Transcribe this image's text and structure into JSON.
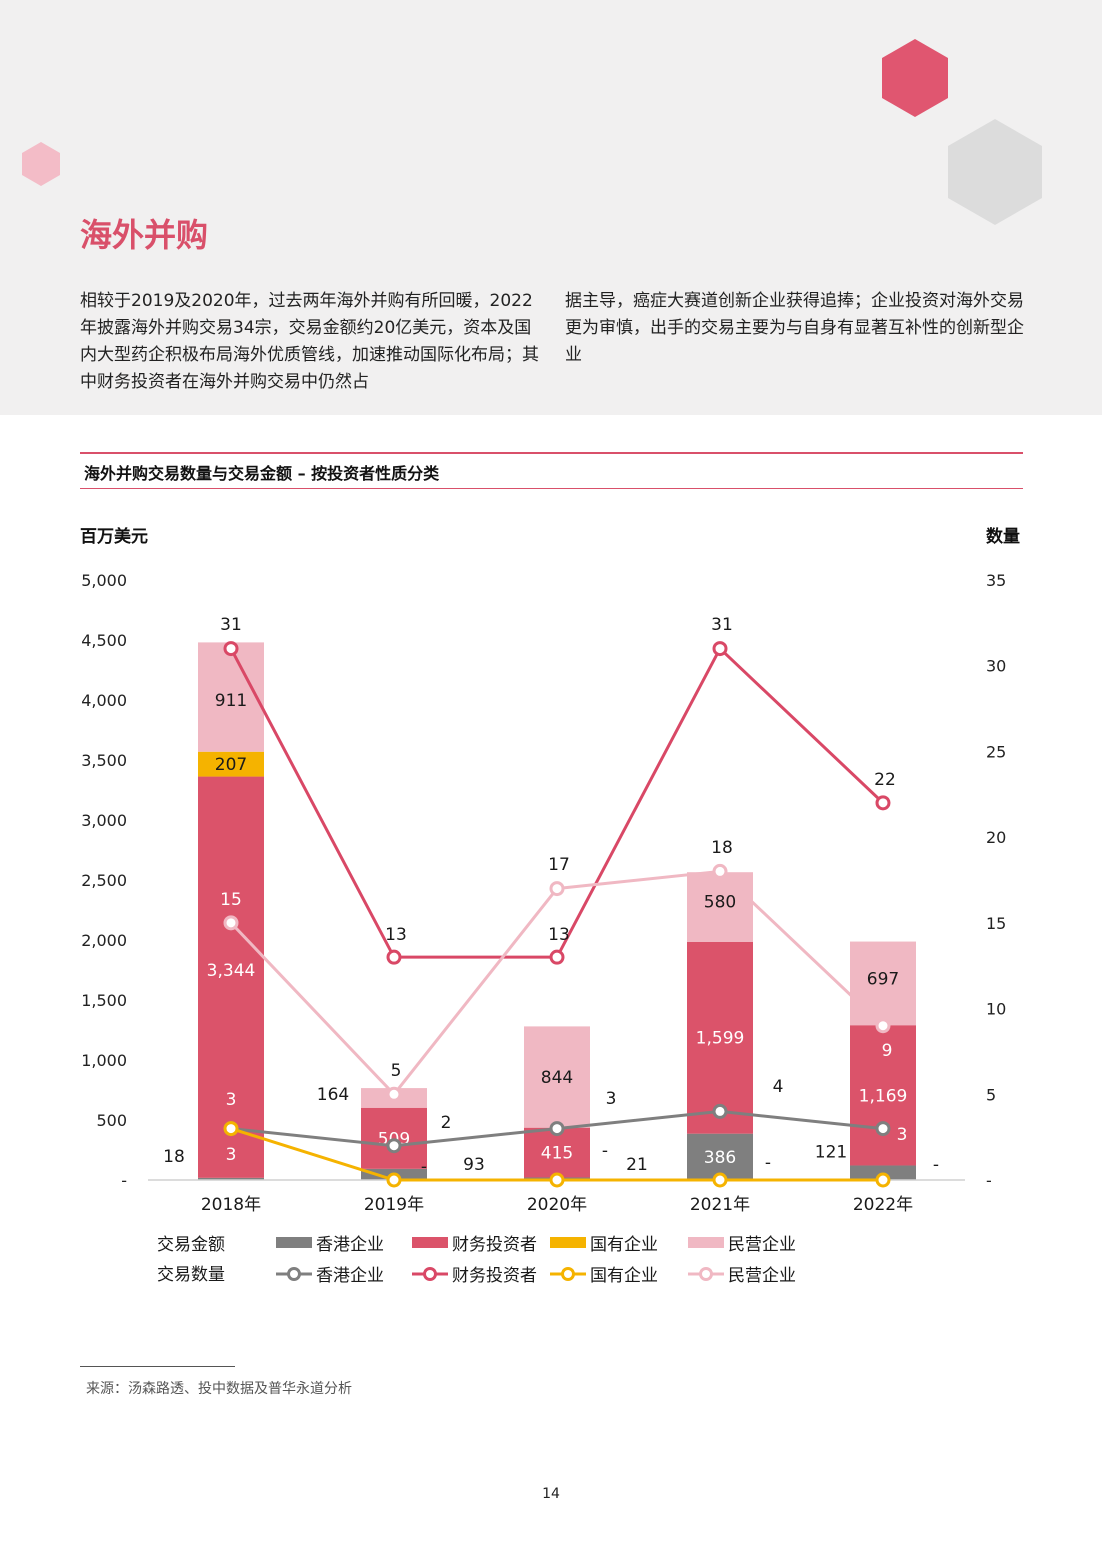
{
  "page": {
    "section_title": "海外并购",
    "intro_left": "相较于2019及2020年，过去两年海外并购有所回暖，2022年披露海外并购交易34宗，交易金额约20亿美元，资本及国内大型药企积极布局海外优质管线，加速推动国际化布局；其中财务投资者在海外并购交易中仍然占",
    "intro_right": "据主导，癌症大赛道创新企业获得追捧；企业投资对海外交易更为审慎，出手的交易主要为与自身有显著互补性的创新型企业",
    "chart_title": "海外并购交易数量与交易金额 – 按投资者性质分类",
    "source": "来源：汤森路透、投中数据及普华永道分析",
    "page_number": "14"
  },
  "colors": {
    "hk": "#7f7f7f",
    "financial": "#db536a",
    "state": "#f5b300",
    "private": "#f0b8c3",
    "title_accent": "#d9506a",
    "hex_red": "#e05670",
    "hex_pink": "#f3bcc7",
    "hex_grey": "#dcdcdc",
    "band": "#f1f0f0"
  },
  "chart_data": {
    "type": "bar",
    "categories": [
      "2018年",
      "2019年",
      "2020年",
      "2021年",
      "2022年"
    ],
    "left_axis": {
      "label": "百万美元",
      "ylim": [
        0,
        5000
      ],
      "ticks": [
        "-",
        "500",
        "1,000",
        "1,500",
        "2,000",
        "2,500",
        "3,000",
        "3,500",
        "4,000",
        "4,500",
        "5,000"
      ]
    },
    "right_axis": {
      "label": "数量",
      "ylim": [
        0,
        35
      ],
      "ticks": [
        "-",
        "5",
        "10",
        "15",
        "20",
        "25",
        "30",
        "35"
      ]
    },
    "amount_series": [
      {
        "key": "hk",
        "name": "香港企业",
        "values": [
          18,
          93,
          21,
          386,
          121
        ],
        "labels": [
          "18",
          "93",
          "21",
          "386",
          "121"
        ]
      },
      {
        "key": "financial",
        "name": "财务投资者",
        "values": [
          3344,
          509,
          415,
          1599,
          1169
        ],
        "labels": [
          "3,344",
          "509",
          "415",
          "1,599",
          "1,169"
        ]
      },
      {
        "key": "state",
        "name": "国有企业",
        "values": [
          207,
          0,
          0,
          0,
          0
        ],
        "labels": [
          "207",
          "-",
          "-",
          "-",
          "-"
        ]
      },
      {
        "key": "private",
        "name": "民营企业",
        "values": [
          911,
          164,
          844,
          580,
          697
        ],
        "labels": [
          "911",
          "164",
          "844",
          "580",
          "697"
        ]
      }
    ],
    "count_series": [
      {
        "key": "hk",
        "name": "香港企业",
        "values": [
          3,
          2,
          3,
          4,
          3
        ]
      },
      {
        "key": "financial",
        "name": "财务投资者",
        "values": [
          31,
          13,
          13,
          31,
          22
        ]
      },
      {
        "key": "state",
        "name": "国有企业",
        "values": [
          3,
          0,
          0,
          0,
          0
        ]
      },
      {
        "key": "private",
        "name": "民营企业",
        "values": [
          15,
          5,
          17,
          18,
          9
        ]
      }
    ],
    "legend": {
      "amount_label": "交易金额",
      "count_label": "交易数量",
      "placement": "bottom"
    }
  }
}
